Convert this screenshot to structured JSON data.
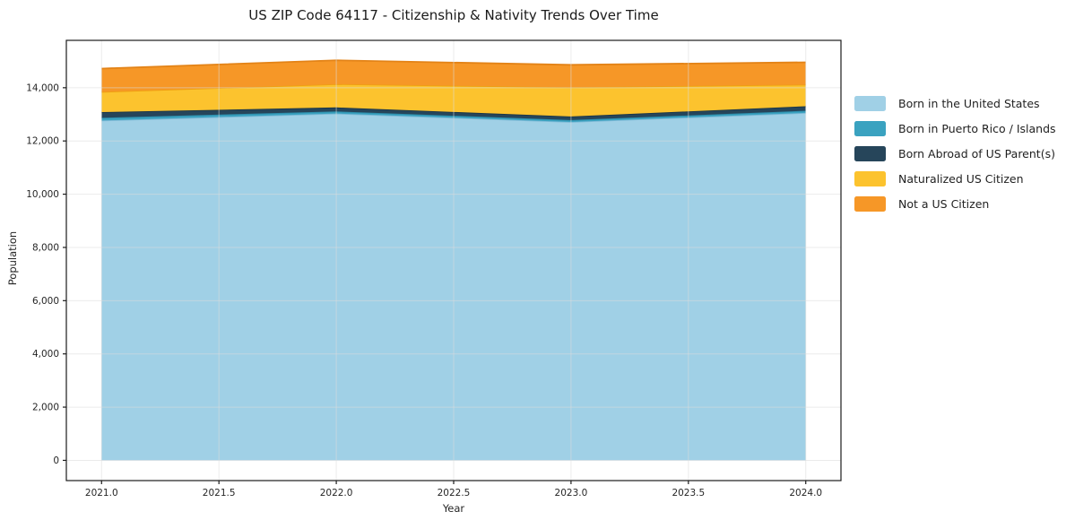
{
  "chart_data": {
    "type": "area",
    "stacked": true,
    "title": "US ZIP Code 64117 - Citizenship & Nativity Trends Over Time",
    "xlabel": "Year",
    "ylabel": "Population",
    "x": [
      2021,
      2022,
      2023,
      2024
    ],
    "series": [
      {
        "name": "Born in the United States",
        "color": "#a0d0e6",
        "edge_color": "#7db9d6",
        "values": [
          12770,
          13030,
          12715,
          13055
        ]
      },
      {
        "name": "Born in Puerto Rico / Islands",
        "color": "#3aa2c0",
        "edge_color": "#2d8dab",
        "values": [
          100,
          80,
          70,
          80
        ]
      },
      {
        "name": "Born Abroad of US Parent(s)",
        "color": "#26455a",
        "edge_color": "#1b3648",
        "values": [
          215,
          150,
          135,
          170
        ]
      },
      {
        "name": "Naturalized US Citizen",
        "color": "#fcc32e",
        "edge_color": "#efa011",
        "values": [
          760,
          875,
          1100,
          810
        ]
      },
      {
        "name": "Not a US Citizen",
        "color": "#f69727",
        "edge_color": "#e38317",
        "values": [
          875,
          895,
          840,
          840
        ]
      }
    ],
    "totals": [
      14720,
      15030,
      14860,
      14955
    ],
    "xlim": [
      2020.85,
      2024.15
    ],
    "ylim": [
      -760,
      15780
    ],
    "x_ticks": [
      2021.0,
      2021.5,
      2022.0,
      2022.5,
      2023.0,
      2023.5,
      2024.0
    ],
    "x_tick_labels": [
      "2021.0",
      "2021.5",
      "2022.0",
      "2022.5",
      "2023.0",
      "2023.5",
      "2024.0"
    ],
    "y_ticks": [
      0,
      2000,
      4000,
      6000,
      8000,
      10000,
      12000,
      14000
    ],
    "y_tick_labels": [
      "0",
      "2,000",
      "4,000",
      "6,000",
      "8,000",
      "10,000",
      "12,000",
      "14,000"
    ],
    "grid": true,
    "grid_color": "#dcdcdc",
    "frame_color": "#1c1c1c",
    "text_color": "#262626",
    "legend_position": "right"
  }
}
